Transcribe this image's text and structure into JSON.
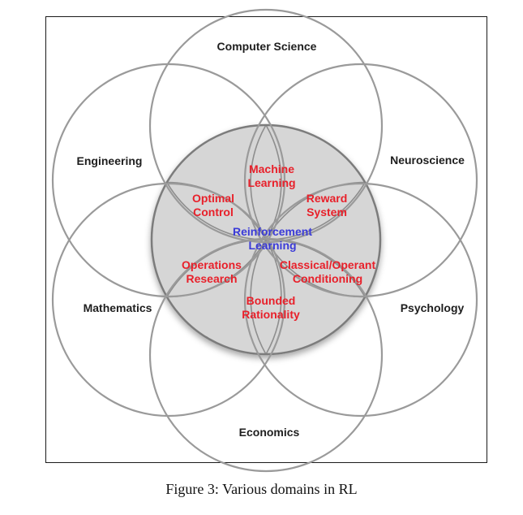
{
  "diagram": {
    "domains": [
      {
        "id": "computer-science",
        "label": "Computer Science"
      },
      {
        "id": "neuroscience",
        "label": "Neuroscience"
      },
      {
        "id": "psychology",
        "label": "Psychology"
      },
      {
        "id": "economics",
        "label": "Economics"
      },
      {
        "id": "mathematics",
        "label": "Mathematics"
      },
      {
        "id": "engineering",
        "label": "Engineering"
      }
    ],
    "subfields": [
      {
        "id": "machine-learning",
        "lines": [
          "Machine",
          "Learning"
        ]
      },
      {
        "id": "reward-system",
        "lines": [
          "Reward",
          "System"
        ]
      },
      {
        "id": "classical-operant-conditioning",
        "lines": [
          "Classical/Operant",
          "Conditioning"
        ]
      },
      {
        "id": "bounded-rationality",
        "lines": [
          "Bounded",
          "Rationality"
        ]
      },
      {
        "id": "operations-research",
        "lines": [
          "Operations",
          "Research"
        ]
      },
      {
        "id": "optimal-control",
        "lines": [
          "Optimal",
          "Control"
        ]
      }
    ],
    "center": {
      "lines": [
        "Reinforcement",
        "Learning"
      ]
    },
    "colors": {
      "domain_text": "#1e1e1e",
      "subfield_text": "#e8202a",
      "center_text": "#3a3ad8",
      "inner_fill": "#d6d6d6",
      "outline": "#9a9a9a"
    }
  },
  "caption": "Figure 3: Various domains in RL"
}
